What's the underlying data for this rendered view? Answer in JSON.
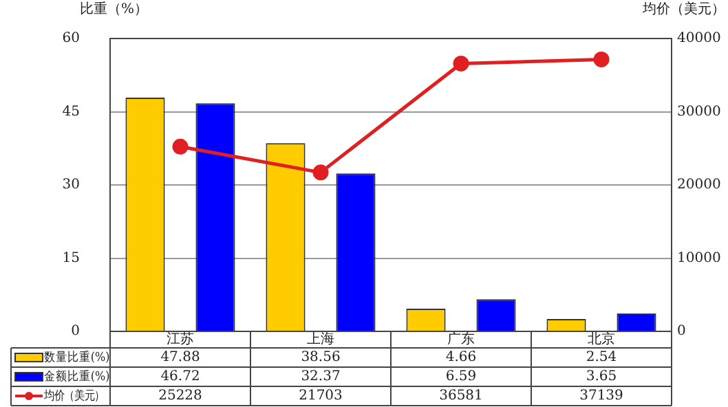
{
  "chart_data": {
    "type": "bar",
    "ylabel": "比重（%）",
    "y2label": "均价（美元）",
    "categories": [
      "江苏",
      "上海",
      "广东",
      "北京"
    ],
    "series": [
      {
        "name": "数量比重(%)",
        "color": "#ffcc00",
        "values": [
          47.88,
          38.56,
          4.66,
          2.54
        ]
      },
      {
        "name": "金额比重(%)",
        "color": "#0000ff",
        "values": [
          46.72,
          32.37,
          6.59,
          3.65
        ]
      },
      {
        "name": "均价（美元）",
        "type": "line",
        "axis": "y2",
        "color": "#e02020",
        "marker": "circle",
        "values": [
          25228,
          21703,
          36581,
          37139
        ]
      }
    ],
    "ylim": [
      0,
      60
    ],
    "yticks": [
      0,
      15,
      30,
      45,
      60
    ],
    "y2lim": [
      0,
      40000
    ],
    "y2ticks": [
      0,
      10000,
      20000,
      30000,
      40000
    ],
    "grid": "y",
    "legend": "bottom",
    "data_labels": true
  }
}
